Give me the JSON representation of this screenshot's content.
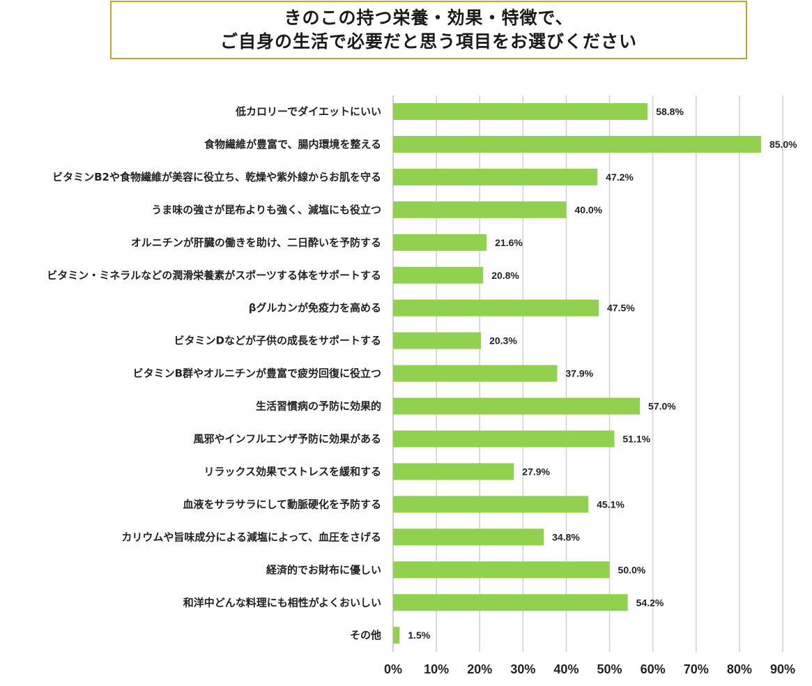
{
  "title_lines": [
    "きのこの持つ栄養・効果・特徴で、",
    "ご自身の生活で必要だと思う項目をお選びください"
  ],
  "colors": {
    "bar": "#92d050",
    "grid": "#d0d0d0",
    "title_border": "#c8a227"
  },
  "chart_data": {
    "type": "bar",
    "orientation": "horizontal",
    "categories": [
      "低カロリーでダイエットにいい",
      "食物繊維が豊富で、腸内環境を整える",
      "ビタミンB2や食物繊維が美容に役立ち、乾燥や紫外線からお肌を守る",
      "うま味の強さが昆布よりも強く、減塩にも役立つ",
      "オルニチンが肝臓の働きを助け、二日酔いを予防する",
      "ビタミン・ミネラルなどの潤滑栄養素がスポーツする体をサポートする",
      "βグルカンが免疫力を高める",
      "ビタミンDなどが子供の成長をサポートする",
      "ビタミンB群やオルニチンが豊富で疲労回復に役立つ",
      "生活習慣病の予防に効果的",
      "風邪やインフルエンザ予防に効果がある",
      "リラックス効果でストレスを緩和する",
      "血液をサラサラにして動脈硬化を予防する",
      "カリウムや旨味成分による減塩によって、血圧をさげる",
      "経済的でお財布に優しい",
      "和洋中どんな料理にも相性がよくおいしい",
      "その他"
    ],
    "values": [
      58.8,
      85.0,
      47.2,
      40.0,
      21.6,
      20.8,
      47.5,
      20.3,
      37.9,
      57.0,
      51.1,
      27.9,
      45.1,
      34.8,
      50.0,
      54.2,
      1.5
    ],
    "value_labels": [
      "58.8%",
      "85.0%",
      "47.2%",
      "40.0%",
      "21.6%",
      "20.8%",
      "47.5%",
      "20.3%",
      "37.9%",
      "57.0%",
      "51.1%",
      "27.9%",
      "45.1%",
      "34.8%",
      "50.0%",
      "54.2%",
      "1.5%"
    ],
    "xlim": [
      0,
      90
    ],
    "ticks": [
      0,
      10,
      20,
      30,
      40,
      50,
      60,
      70,
      80,
      90
    ],
    "tick_labels": [
      "0%",
      "10%",
      "20%",
      "30%",
      "40%",
      "50%",
      "60%",
      "70%",
      "80%",
      "90%"
    ],
    "grid": true,
    "legend": "none",
    "title": "",
    "xlabel": "",
    "ylabel": ""
  }
}
